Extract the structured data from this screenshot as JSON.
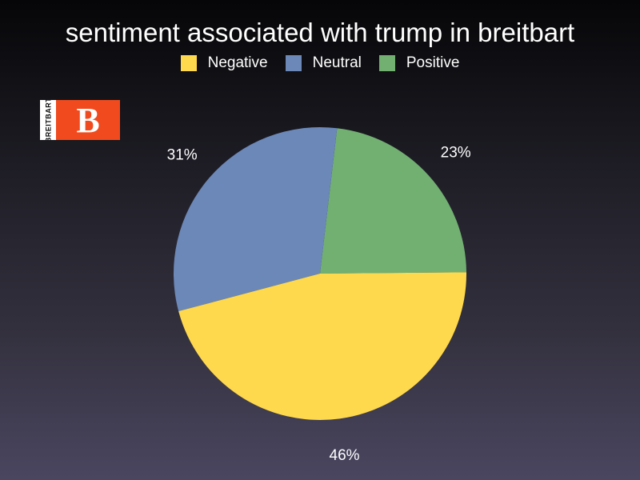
{
  "chart_data": {
    "type": "pie",
    "title": "sentiment associated with trump in breitbart",
    "categories": [
      "Negative",
      "Neutral",
      "Positive"
    ],
    "values": [
      46,
      31,
      23
    ],
    "value_labels": [
      "46%",
      "31%",
      "23%"
    ],
    "colors": [
      "#ffd94d",
      "#6b88b8",
      "#72b072"
    ],
    "legend_position": "top-center"
  },
  "logo": {
    "side_text": "BREITBART",
    "letter": "B",
    "color": "#f04a1e"
  }
}
